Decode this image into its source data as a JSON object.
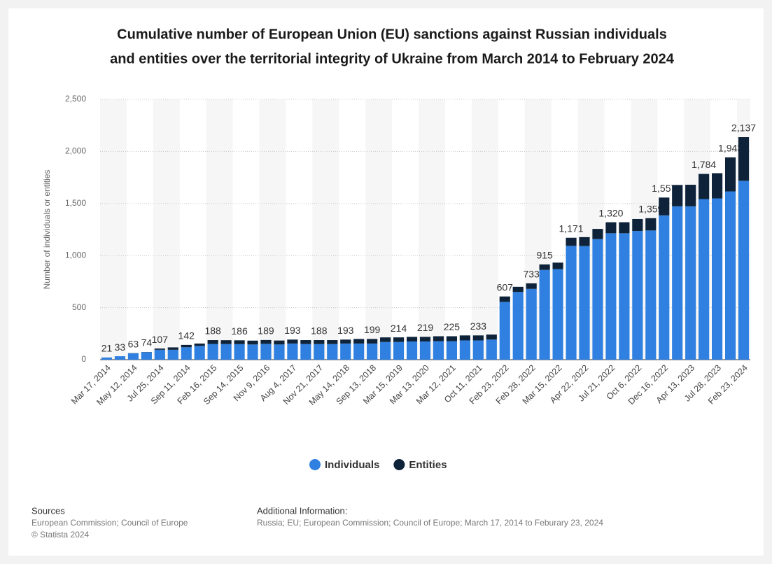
{
  "chart_data": {
    "type": "stacked_bar",
    "title_lines": [
      "Cumulative number of European Union (EU) sanctions against Russian individuals",
      "and entities over the territorial integrity of Ukraine from March 2014 to February 2024"
    ],
    "y_label": "Number of individuals or entities",
    "categories": [
      "Mar 17, 2014",
      null,
      "May 12, 2014",
      null,
      "Jul 25, 2014",
      null,
      "Sep 11, 2014",
      null,
      "Feb 16, 2015",
      null,
      "Sep 14, 2015",
      null,
      "Nov 9, 2016",
      null,
      "Aug 4, 2017",
      null,
      "Nov 21, 2017",
      null,
      "May 14, 2018",
      null,
      "Sep 13, 2018",
      null,
      "Mar 15, 2019",
      null,
      "Mar 13, 2020",
      null,
      "Mar 12, 2021",
      null,
      "Oct 11, 2021",
      null,
      "Feb 23, 2022",
      null,
      "Feb 28, 2022",
      null,
      "Mar 15, 2022",
      null,
      "Apr 22, 2022",
      null,
      "Jul 21, 2022",
      null,
      "Oct 6, 2022",
      null,
      "Dec 16, 2022",
      null,
      "Apr 13, 2023",
      null,
      "Jul 28, 2023",
      null,
      "Feb 23, 2024"
    ],
    "series": [
      {
        "name": "Individuals",
        "color": "#2f80e0",
        "values": [
          21,
          33,
          61,
          72,
          95,
          95,
          119,
          132,
          151,
          150,
          149,
          146,
          152,
          146,
          155,
          150,
          150,
          150,
          155,
          155,
          155,
          170,
          170,
          175,
          175,
          177,
          177,
          185,
          185,
          193,
          555,
          650,
          680,
          862,
          870,
          1093,
          1091,
          1158,
          1214,
          1214,
          1236,
          1241,
          1386,
          1473,
          1473,
          1542,
          1549,
          1616,
          1718
        ]
      },
      {
        "name": "Entities",
        "color": "#0e2339",
        "values": [
          0,
          0,
          2,
          2,
          12,
          23,
          23,
          23,
          37,
          37,
          37,
          37,
          37,
          38,
          38,
          38,
          38,
          38,
          38,
          44,
          44,
          44,
          44,
          44,
          44,
          48,
          48,
          48,
          48,
          48,
          52,
          50,
          53,
          53,
          62,
          78,
          86,
          98,
          106,
          106,
          115,
          118,
          171,
          205,
          207,
          242,
          242,
          327,
          419
        ]
      }
    ],
    "totals": [
      21,
      33,
      63,
      74,
      107,
      null,
      142,
      null,
      188,
      null,
      186,
      null,
      189,
      null,
      193,
      null,
      188,
      null,
      193,
      null,
      199,
      null,
      214,
      null,
      219,
      null,
      225,
      null,
      233,
      null,
      607,
      null,
      733,
      915,
      null,
      1171,
      null,
      null,
      1320,
      null,
      null,
      1359,
      1557,
      null,
      null,
      1784,
      null,
      1943,
      2137
    ],
    "total_labels": [
      "21",
      "33",
      "63",
      "74",
      "107",
      null,
      "142",
      null,
      "188",
      null,
      "186",
      null,
      "189",
      null,
      "193",
      null,
      "188",
      null,
      "193",
      null,
      "199",
      null,
      "214",
      null,
      "219",
      null,
      "225",
      null,
      "233",
      null,
      "607",
      null,
      "733",
      "915",
      null,
      "1,171",
      null,
      null,
      "1,320",
      null,
      null,
      "1,359",
      "1,557",
      null,
      null,
      "1,784",
      null,
      "1,943",
      "2,137"
    ],
    "ylim": [
      0,
      2500
    ],
    "yticks": [
      0,
      500,
      {
        "value": 1000,
        "label": "1,000"
      },
      {
        "value": 1500,
        "label": "1,500"
      },
      {
        "value": 2000,
        "label": "2,000"
      },
      {
        "value": 2500,
        "label": "2,500"
      }
    ],
    "grid": true
  },
  "footer": {
    "sources_heading": "Sources",
    "sources": "European Commission; Council of Europe",
    "copyright": "© Statista 2024",
    "info_heading": "Additional Information:",
    "info": "Russia; EU; European Commission; Council of Europe; March 17, 2014 to Feburary 23, 2024"
  }
}
